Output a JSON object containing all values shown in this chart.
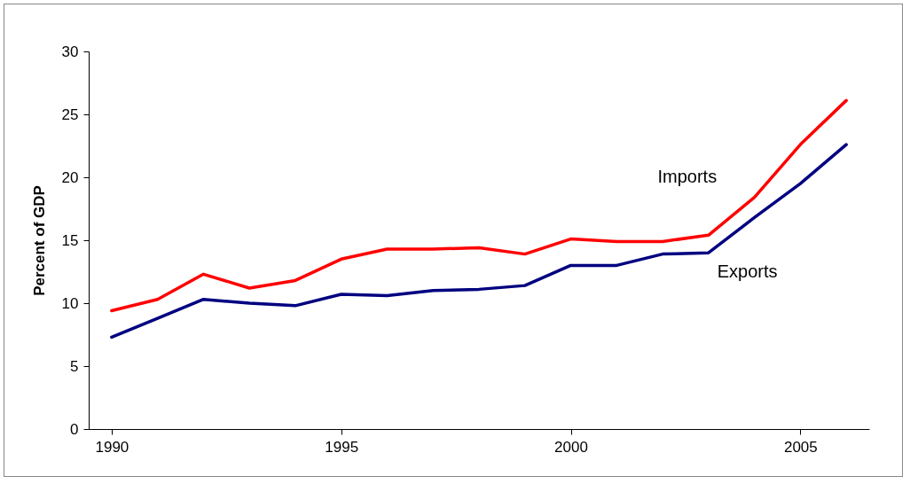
{
  "chart_data": {
    "type": "line",
    "ylabel": "Percent of GDP",
    "x": [
      1990,
      1991,
      1992,
      1993,
      1994,
      1995,
      1996,
      1997,
      1998,
      1999,
      2000,
      2001,
      2002,
      2003,
      2004,
      2005,
      2006
    ],
    "series": [
      {
        "name": "Imports",
        "color": "#ff0000",
        "values": [
          9.4,
          10.3,
          12.3,
          11.2,
          11.8,
          13.5,
          14.3,
          14.3,
          14.4,
          13.9,
          15.1,
          14.9,
          14.9,
          15.4,
          18.4,
          22.6,
          26.1
        ]
      },
      {
        "name": "Exports",
        "color": "#000080",
        "values": [
          7.3,
          8.8,
          10.3,
          10.0,
          9.8,
          10.7,
          10.6,
          11.0,
          11.1,
          11.4,
          13.0,
          13.0,
          13.9,
          14.0,
          16.8,
          19.5,
          22.6
        ]
      }
    ],
    "xlim": [
      1989.5,
      2006.5
    ],
    "xticks": [
      1990,
      1995,
      2000,
      2005
    ],
    "ylim": [
      0,
      30
    ],
    "yticks": [
      0,
      5,
      10,
      15,
      20,
      25,
      30
    ],
    "grid": false,
    "marker": "none",
    "line_style": "solid"
  }
}
